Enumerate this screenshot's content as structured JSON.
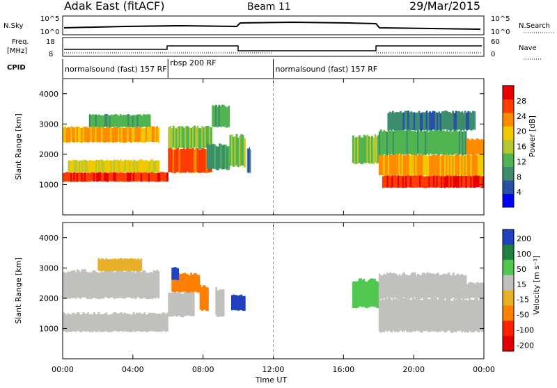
{
  "header": {
    "title": "Adak East (fitACF)",
    "beam": "Beam 11",
    "date": "29/Mar/2015"
  },
  "top_panels": {
    "nsky_label": "N.Sky",
    "nsky_ticks": [
      "10^5",
      "10^0"
    ],
    "nsearch_label": "N.Search",
    "nsearch_ticks": [
      "10^5",
      "10^0"
    ],
    "freq_label": "Freq.",
    "freq_unit": "[MHz]",
    "freq_ticks": [
      "18",
      "8"
    ],
    "nave_label": "Nave",
    "nave_ticks": [
      "60",
      "0"
    ],
    "cpid_label": "CPID"
  },
  "cpid_segments": [
    {
      "label": "normalsound (fast) 157 RF",
      "start_h": 0,
      "end_h": 6
    },
    {
      "label": "rbsp 200 RF",
      "start_h": 6,
      "end_h": 12
    },
    {
      "label": "normalsound (fast) 157 RF",
      "start_h": 12,
      "end_h": 24
    }
  ],
  "colors": {
    "power": [
      "#0000ff",
      "#2850a8",
      "#3c8c6e",
      "#50b450",
      "#b4c832",
      "#f0c800",
      "#ff8c00",
      "#ff3c00",
      "#e60000"
    ],
    "velocity": [
      "#2040c0",
      "#208040",
      "#50c850",
      "#c0c0bc",
      "#e8b028",
      "#ff8000",
      "#ff2000",
      "#e00000"
    ]
  },
  "chart_data": [
    {
      "type": "heatmap",
      "title": "Power",
      "xlabel": "Time UT",
      "ylabel": "Slant Range [km]",
      "x_range_hours": [
        0,
        24
      ],
      "y_range_km": [
        0,
        4500
      ],
      "x_ticks": [
        "00:00",
        "04:00",
        "08:00",
        "12:00",
        "16:00",
        "20:00",
        "00:00"
      ],
      "y_ticks": [
        "1000",
        "2000",
        "3000",
        "4000"
      ],
      "colorbar_label": "Power [dB]",
      "colorbar_ticks": [
        "28",
        "24",
        "20",
        "16",
        "12",
        "8",
        "4"
      ],
      "colorbar_range": [
        0,
        32
      ],
      "bands": [
        {
          "h0": 0,
          "h1": 6,
          "r0": 1100,
          "r1": 1400,
          "v": 28
        },
        {
          "h0": 0.3,
          "h1": 5.5,
          "r0": 1400,
          "r1": 1800,
          "v": 18
        },
        {
          "h0": 0,
          "h1": 5.5,
          "r0": 2400,
          "r1": 2900,
          "v": 22
        },
        {
          "h0": 1.5,
          "h1": 5,
          "r0": 2900,
          "r1": 3300,
          "v": 12
        },
        {
          "h0": 6,
          "h1": 8.5,
          "r0": 1400,
          "r1": 2200,
          "v": 26
        },
        {
          "h0": 6,
          "h1": 8.5,
          "r0": 2200,
          "r1": 2900,
          "v": 14
        },
        {
          "h0": 8.2,
          "h1": 9.5,
          "r0": 1500,
          "r1": 2300,
          "v": 10
        },
        {
          "h0": 8.5,
          "h1": 9.5,
          "r0": 2900,
          "r1": 3600,
          "v": 12
        },
        {
          "h0": 9.5,
          "h1": 10.4,
          "r0": 1600,
          "r1": 2600,
          "v": 14
        },
        {
          "h0": 10.5,
          "h1": 10.7,
          "r0": 1400,
          "r1": 2200,
          "v": 8
        },
        {
          "h0": 16.5,
          "h1": 18.2,
          "r0": 1700,
          "r1": 2600,
          "v": 14
        },
        {
          "h0": 18.2,
          "h1": 24,
          "r0": 900,
          "r1": 1300,
          "v": 28
        },
        {
          "h0": 18,
          "h1": 24,
          "r0": 1300,
          "r1": 2000,
          "v": 22
        },
        {
          "h0": 18,
          "h1": 23,
          "r0": 2000,
          "r1": 2800,
          "v": 12
        },
        {
          "h0": 18.5,
          "h1": 23.5,
          "r0": 2800,
          "r1": 3400,
          "v": 8
        },
        {
          "h0": 23,
          "h1": 24,
          "r0": 2000,
          "r1": 2500,
          "v": 22
        }
      ]
    },
    {
      "type": "heatmap",
      "title": "Velocity",
      "xlabel": "Time UT",
      "ylabel": "Slant Range [km]",
      "x_range_hours": [
        0,
        24
      ],
      "y_range_km": [
        0,
        4500
      ],
      "x_ticks": [
        "00:00",
        "04:00",
        "08:00",
        "12:00",
        "16:00",
        "20:00",
        "00:00"
      ],
      "y_ticks": [
        "1000",
        "2000",
        "3000",
        "4000"
      ],
      "colorbar_label": "Velocity [m s⁻¹]",
      "colorbar_ticks": [
        "200",
        "100",
        "50",
        "15",
        "-15",
        "-50",
        "-100",
        "-200"
      ],
      "colorbar_range": [
        -250,
        250
      ],
      "bands": [
        {
          "h0": 0,
          "h1": 6,
          "r0": 900,
          "r1": 1500,
          "v": 0
        },
        {
          "h0": 0,
          "h1": 5.5,
          "r0": 2000,
          "r1": 2900,
          "v": 0
        },
        {
          "h0": 2,
          "h1": 4.5,
          "r0": 2900,
          "r1": 3300,
          "v": -30
        },
        {
          "h0": 6,
          "h1": 7.5,
          "r0": 1400,
          "r1": 2200,
          "v": 0
        },
        {
          "h0": 6.2,
          "h1": 7.8,
          "r0": 2200,
          "r1": 2800,
          "v": -40
        },
        {
          "h0": 7.8,
          "h1": 8.3,
          "r0": 1600,
          "r1": 2400,
          "v": -40
        },
        {
          "h0": 6.2,
          "h1": 6.6,
          "r0": 2600,
          "r1": 3000,
          "v": 210
        },
        {
          "h0": 9.6,
          "h1": 10.4,
          "r0": 1600,
          "r1": 2100,
          "v": 210
        },
        {
          "h0": 8.7,
          "h1": 9.2,
          "r0": 1400,
          "r1": 2300,
          "v": 0
        },
        {
          "h0": 16.5,
          "h1": 18,
          "r0": 1700,
          "r1": 2600,
          "v": 60
        },
        {
          "h0": 18,
          "h1": 24,
          "r0": 900,
          "r1": 2000,
          "v": 0
        },
        {
          "h0": 18,
          "h1": 23,
          "r0": 2000,
          "r1": 2800,
          "v": 0
        },
        {
          "h0": 23,
          "h1": 24,
          "r0": 2000,
          "r1": 2500,
          "v": 0
        }
      ]
    }
  ]
}
